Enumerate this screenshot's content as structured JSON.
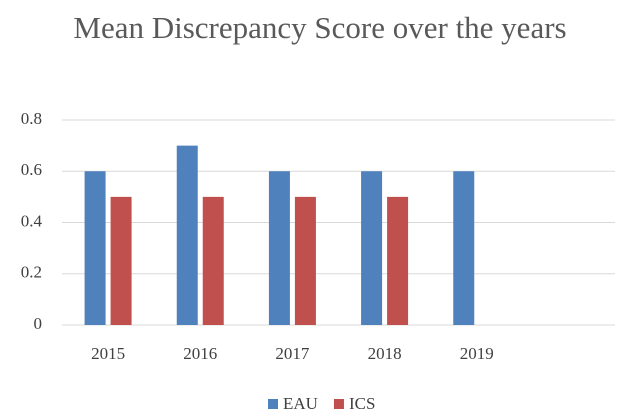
{
  "chart_data": {
    "type": "bar",
    "title": "Mean Discrepancy Score over the years",
    "categories": [
      "2015",
      "2016",
      "2017",
      "2018",
      "2019",
      null
    ],
    "series": [
      {
        "name": "EAU",
        "color": "#4f81bd",
        "values": [
          0.6,
          0.7,
          0.6,
          0.6,
          0.6,
          null
        ]
      },
      {
        "name": "ICS",
        "color": "#c0504d",
        "values": [
          0.5,
          0.5,
          0.5,
          0.5,
          null,
          null
        ]
      }
    ],
    "ylim": [
      0,
      0.8
    ],
    "yticks": [
      0,
      0.2,
      0.4,
      0.6,
      0.8
    ],
    "grid": true,
    "legend": "bottom"
  }
}
